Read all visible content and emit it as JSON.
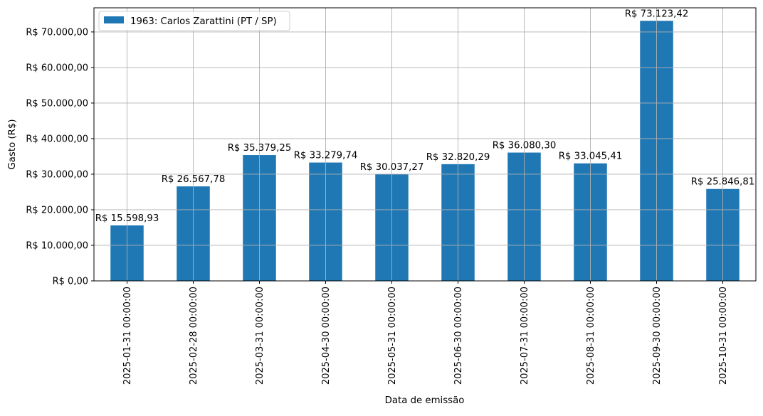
{
  "chart_data": {
    "type": "bar",
    "title": "",
    "xlabel": "Data de emissão",
    "ylabel": "Gasto (R$)",
    "categories": [
      "2025-01-31 00:00:00",
      "2025-02-28 00:00:00",
      "2025-03-31 00:00:00",
      "2025-04-30 00:00:00",
      "2025-05-31 00:00:00",
      "2025-06-30 00:00:00",
      "2025-07-31 00:00:00",
      "2025-08-31 00:00:00",
      "2025-09-30 00:00:00",
      "2025-10-31 00:00:00"
    ],
    "series": [
      {
        "name": "1963: Carlos Zarattini (PT / SP)",
        "color": "#1f77b4",
        "values": [
          15598.93,
          26567.78,
          35379.25,
          33279.74,
          30037.27,
          32820.29,
          36080.3,
          33045.41,
          73123.42,
          25846.81
        ],
        "value_labels": [
          "R$ 15.598,93",
          "R$ 26.567,78",
          "R$ 35.379,25",
          "R$ 33.279,74",
          "R$ 30.037,27",
          "R$ 32.820,29",
          "R$ 36.080,30",
          "R$ 33.045,41",
          "R$ 73.123,42",
          "R$ 25.846,81"
        ]
      }
    ],
    "ylim": [
      0,
      76779.59
    ],
    "yticks": [
      0,
      10000,
      20000,
      30000,
      40000,
      50000,
      60000,
      70000
    ],
    "ytick_labels": [
      "R$ 0,00",
      "R$ 10.000,00",
      "R$ 20.000,00",
      "R$ 30.000,00",
      "R$ 40.000,00",
      "R$ 50.000,00",
      "R$ 60.000,00",
      "R$ 70.000,00"
    ],
    "grid": true,
    "legend_position": "top-left"
  }
}
